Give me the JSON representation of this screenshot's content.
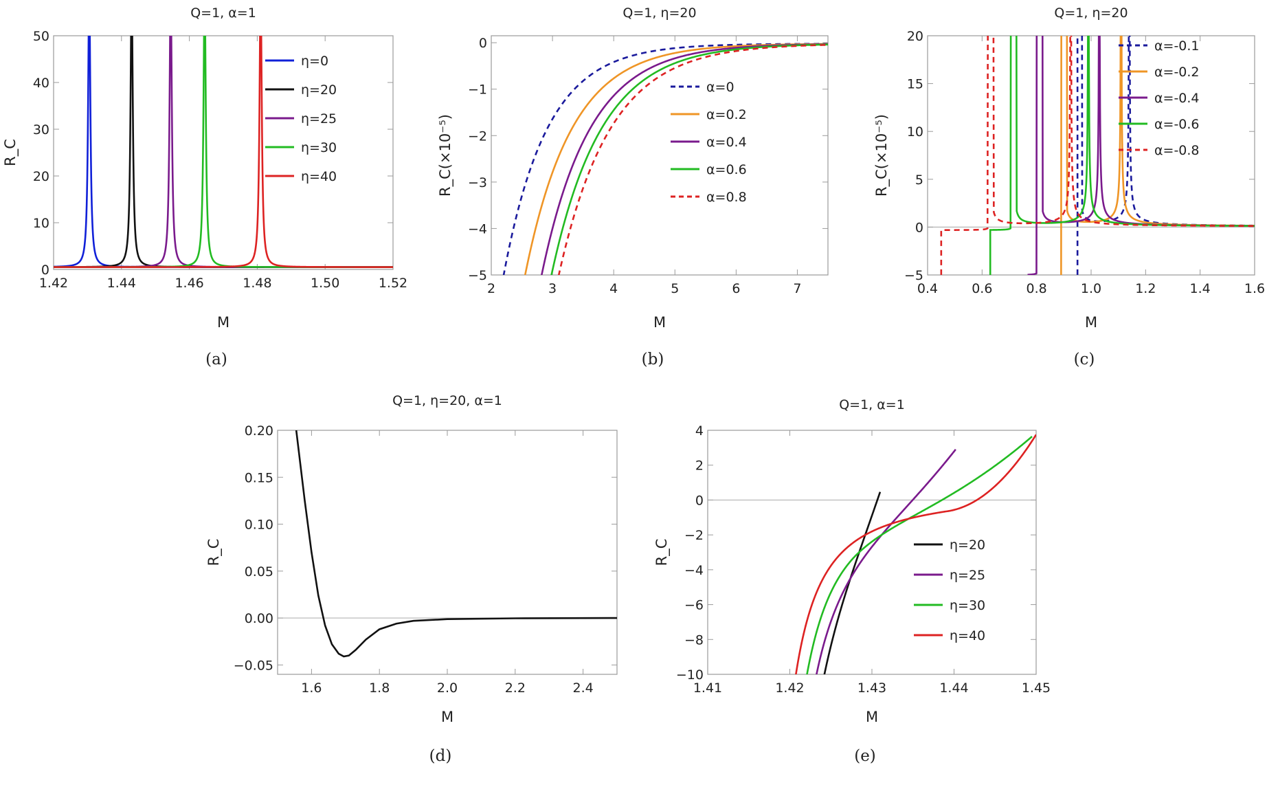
{
  "figure_type": "multi-panel line charts",
  "colors": {
    "blue": "#1020d8",
    "navy": "#1a1a9c",
    "black": "#111111",
    "purple": "#7a1a8c",
    "green": "#22bb22",
    "red": "#dd2222",
    "orange": "#ef9526",
    "zero_line": "#b3b3b3",
    "frame": "#9a9a9a"
  },
  "chart_data": [
    {
      "id": "a",
      "type": "line",
      "caption": "(a)",
      "title": "Q=1, α=1",
      "xlabel": "M",
      "ylabel": "R_C",
      "xlim": [
        1.42,
        1.52
      ],
      "ylim": [
        0,
        50
      ],
      "xticks": [
        "1.42",
        "1.44",
        "1.46",
        "1.48",
        "1.50",
        "1.52"
      ],
      "yticks": [
        "0",
        "10",
        "20",
        "30",
        "40",
        "50"
      ],
      "zero_line": false,
      "legend_position": "top-right",
      "series": [
        {
          "name": "η=0",
          "color": "blue",
          "dash": false,
          "kind": "peak",
          "peak_x": 1.4305,
          "width": 0.0004,
          "baseline": 0.5
        },
        {
          "name": "η=20",
          "color": "black",
          "dash": false,
          "kind": "peak",
          "peak_x": 1.443,
          "width": 0.0004,
          "baseline": 0.5
        },
        {
          "name": "η=25",
          "color": "purple",
          "dash": false,
          "kind": "peak",
          "peak_x": 1.4545,
          "width": 0.0004,
          "baseline": 0.5
        },
        {
          "name": "η=30",
          "color": "green",
          "dash": false,
          "kind": "peak",
          "peak_x": 1.4645,
          "width": 0.0004,
          "baseline": 0.5
        },
        {
          "name": "η=40",
          "color": "red",
          "dash": false,
          "kind": "peak",
          "peak_x": 1.481,
          "width": 0.0004,
          "baseline": 0.5
        }
      ]
    },
    {
      "id": "b",
      "type": "line",
      "caption": "(b)",
      "title": "Q=1, η=20",
      "xlabel": "M",
      "ylabel": "R_C(×10⁻⁵)",
      "xlim": [
        2,
        7.5
      ],
      "ylim": [
        -5,
        0.15
      ],
      "xticks": [
        "2",
        "3",
        "4",
        "5",
        "6",
        "7"
      ],
      "yticks": [
        "-5",
        "-4",
        "-3",
        "-2",
        "-1",
        "0"
      ],
      "zero_line": false,
      "legend_position": "right",
      "series": [
        {
          "name": "α=0",
          "color": "navy",
          "dash": true,
          "kind": "decay",
          "x0": 2.2,
          "scale": 1.35
        },
        {
          "name": "α=0.2",
          "color": "orange",
          "dash": false,
          "kind": "decay",
          "x0": 2.55,
          "scale": 1.45
        },
        {
          "name": "α=0.4",
          "color": "purple",
          "dash": false,
          "kind": "decay",
          "x0": 2.82,
          "scale": 1.5
        },
        {
          "name": "α=0.6",
          "color": "green",
          "dash": false,
          "kind": "decay",
          "x0": 2.98,
          "scale": 1.55
        },
        {
          "name": "α=0.8",
          "color": "red",
          "dash": true,
          "kind": "decay",
          "x0": 3.1,
          "scale": 1.6
        }
      ]
    },
    {
      "id": "c",
      "type": "line",
      "caption": "(c)",
      "title": "Q=1, η=20",
      "xlabel": "M",
      "ylabel": "R_C(×10⁻⁵)",
      "xlim": [
        0.4,
        1.6
      ],
      "ylim": [
        -5,
        20
      ],
      "xticks": [
        "0.4",
        "0.6",
        "0.8",
        "1.0",
        "1.2",
        "1.4",
        "1.6"
      ],
      "yticks": [
        "-5",
        "0",
        "5",
        "10",
        "15",
        "20"
      ],
      "zero_line": true,
      "legend_position": "top-right",
      "series": [
        {
          "name": "α=-0.1",
          "color": "navy",
          "dash": true,
          "kind": "double-pole",
          "start_x": 0.95,
          "step_level": -5,
          "pole1": 0.955,
          "pole2": 1.14
        },
        {
          "name": "α=-0.2",
          "color": "orange",
          "dash": false,
          "kind": "double-pole",
          "start_x": 0.89,
          "step_level": -5,
          "pole1": 0.9,
          "pole2": 1.11
        },
        {
          "name": "α=-0.4",
          "color": "purple",
          "dash": false,
          "kind": "double-pole",
          "start_x": 0.77,
          "step_level": -5,
          "pole1": 0.81,
          "pole2": 1.03
        },
        {
          "name": "α=-0.6",
          "color": "green",
          "dash": false,
          "kind": "double-pole",
          "start_x": 0.63,
          "step_level": -0.3,
          "pole1": 0.715,
          "pole2": 0.99
        },
        {
          "name": "α=-0.8",
          "color": "red",
          "dash": true,
          "kind": "double-pole",
          "start_x": 0.45,
          "step_level": -0.3,
          "pole1": 0.63,
          "pole2": 0.925
        }
      ]
    },
    {
      "id": "d",
      "type": "line",
      "caption": "(d)",
      "title": "Q=1, η=20, α=1",
      "xlabel": "M",
      "ylabel": "R_C",
      "xlim": [
        1.5,
        2.5
      ],
      "ylim": [
        -0.06,
        0.2
      ],
      "xticks": [
        "1.6",
        "1.8",
        "2.0",
        "2.2",
        "2.4"
      ],
      "yticks": [
        "-0.05",
        "0.00",
        "0.05",
        "0.10",
        "0.15",
        "0.20"
      ],
      "zero_line": true,
      "legend_position": "none",
      "series": [
        {
          "name": "η=20",
          "color": "black",
          "dash": false,
          "kind": "dip",
          "points": [
            [
              1.555,
              0.2
            ],
            [
              1.58,
              0.125
            ],
            [
              1.6,
              0.07
            ],
            [
              1.62,
              0.024
            ],
            [
              1.64,
              -0.008
            ],
            [
              1.66,
              -0.028
            ],
            [
              1.68,
              -0.038
            ],
            [
              1.695,
              -0.041
            ],
            [
              1.71,
              -0.04
            ],
            [
              1.73,
              -0.034
            ],
            [
              1.76,
              -0.023
            ],
            [
              1.8,
              -0.012
            ],
            [
              1.85,
              -0.006
            ],
            [
              1.9,
              -0.003
            ],
            [
              2.0,
              -0.0012
            ],
            [
              2.2,
              -0.0003
            ],
            [
              2.5,
              0.0
            ]
          ]
        }
      ]
    },
    {
      "id": "e",
      "type": "line",
      "caption": "(e)",
      "title": "Q=1, α=1",
      "xlabel": "M",
      "ylabel": "R_C",
      "xlim": [
        1.41,
        1.45
      ],
      "ylim": [
        -10,
        4
      ],
      "xticks": [
        "1.41",
        "1.42",
        "1.43",
        "1.44",
        "1.45"
      ],
      "yticks": [
        "-10",
        "-8",
        "-6",
        "-4",
        "-2",
        "0",
        "2",
        "4"
      ],
      "zero_line": true,
      "legend_position": "bottom-right",
      "series": [
        {
          "name": "η=20",
          "color": "black",
          "dash": false,
          "kind": "asym-rise",
          "x0": 1.4143,
          "k": 0.62,
          "c": 0.0005,
          "crossing": 1.4225,
          "xe": 1.431
        },
        {
          "name": "η=25",
          "color": "purple",
          "dash": false,
          "kind": "asym-rise",
          "x0": 1.4143,
          "k": 0.42,
          "c": 0.0004,
          "crossing": 1.4242,
          "xe": 1.4402
        },
        {
          "name": "η=30",
          "color": "green",
          "dash": false,
          "kind": "asym-rise",
          "x0": 1.4143,
          "k": 0.3,
          "c": 0.0003,
          "crossing": 1.428,
          "xe": 1.4495
        },
        {
          "name": "η=40",
          "color": "red",
          "dash": false,
          "kind": "asym-rise",
          "x0": 1.4143,
          "k": 0.2,
          "c": 0.0002,
          "crossing": 1.439,
          "xe": 1.45
        }
      ]
    }
  ]
}
